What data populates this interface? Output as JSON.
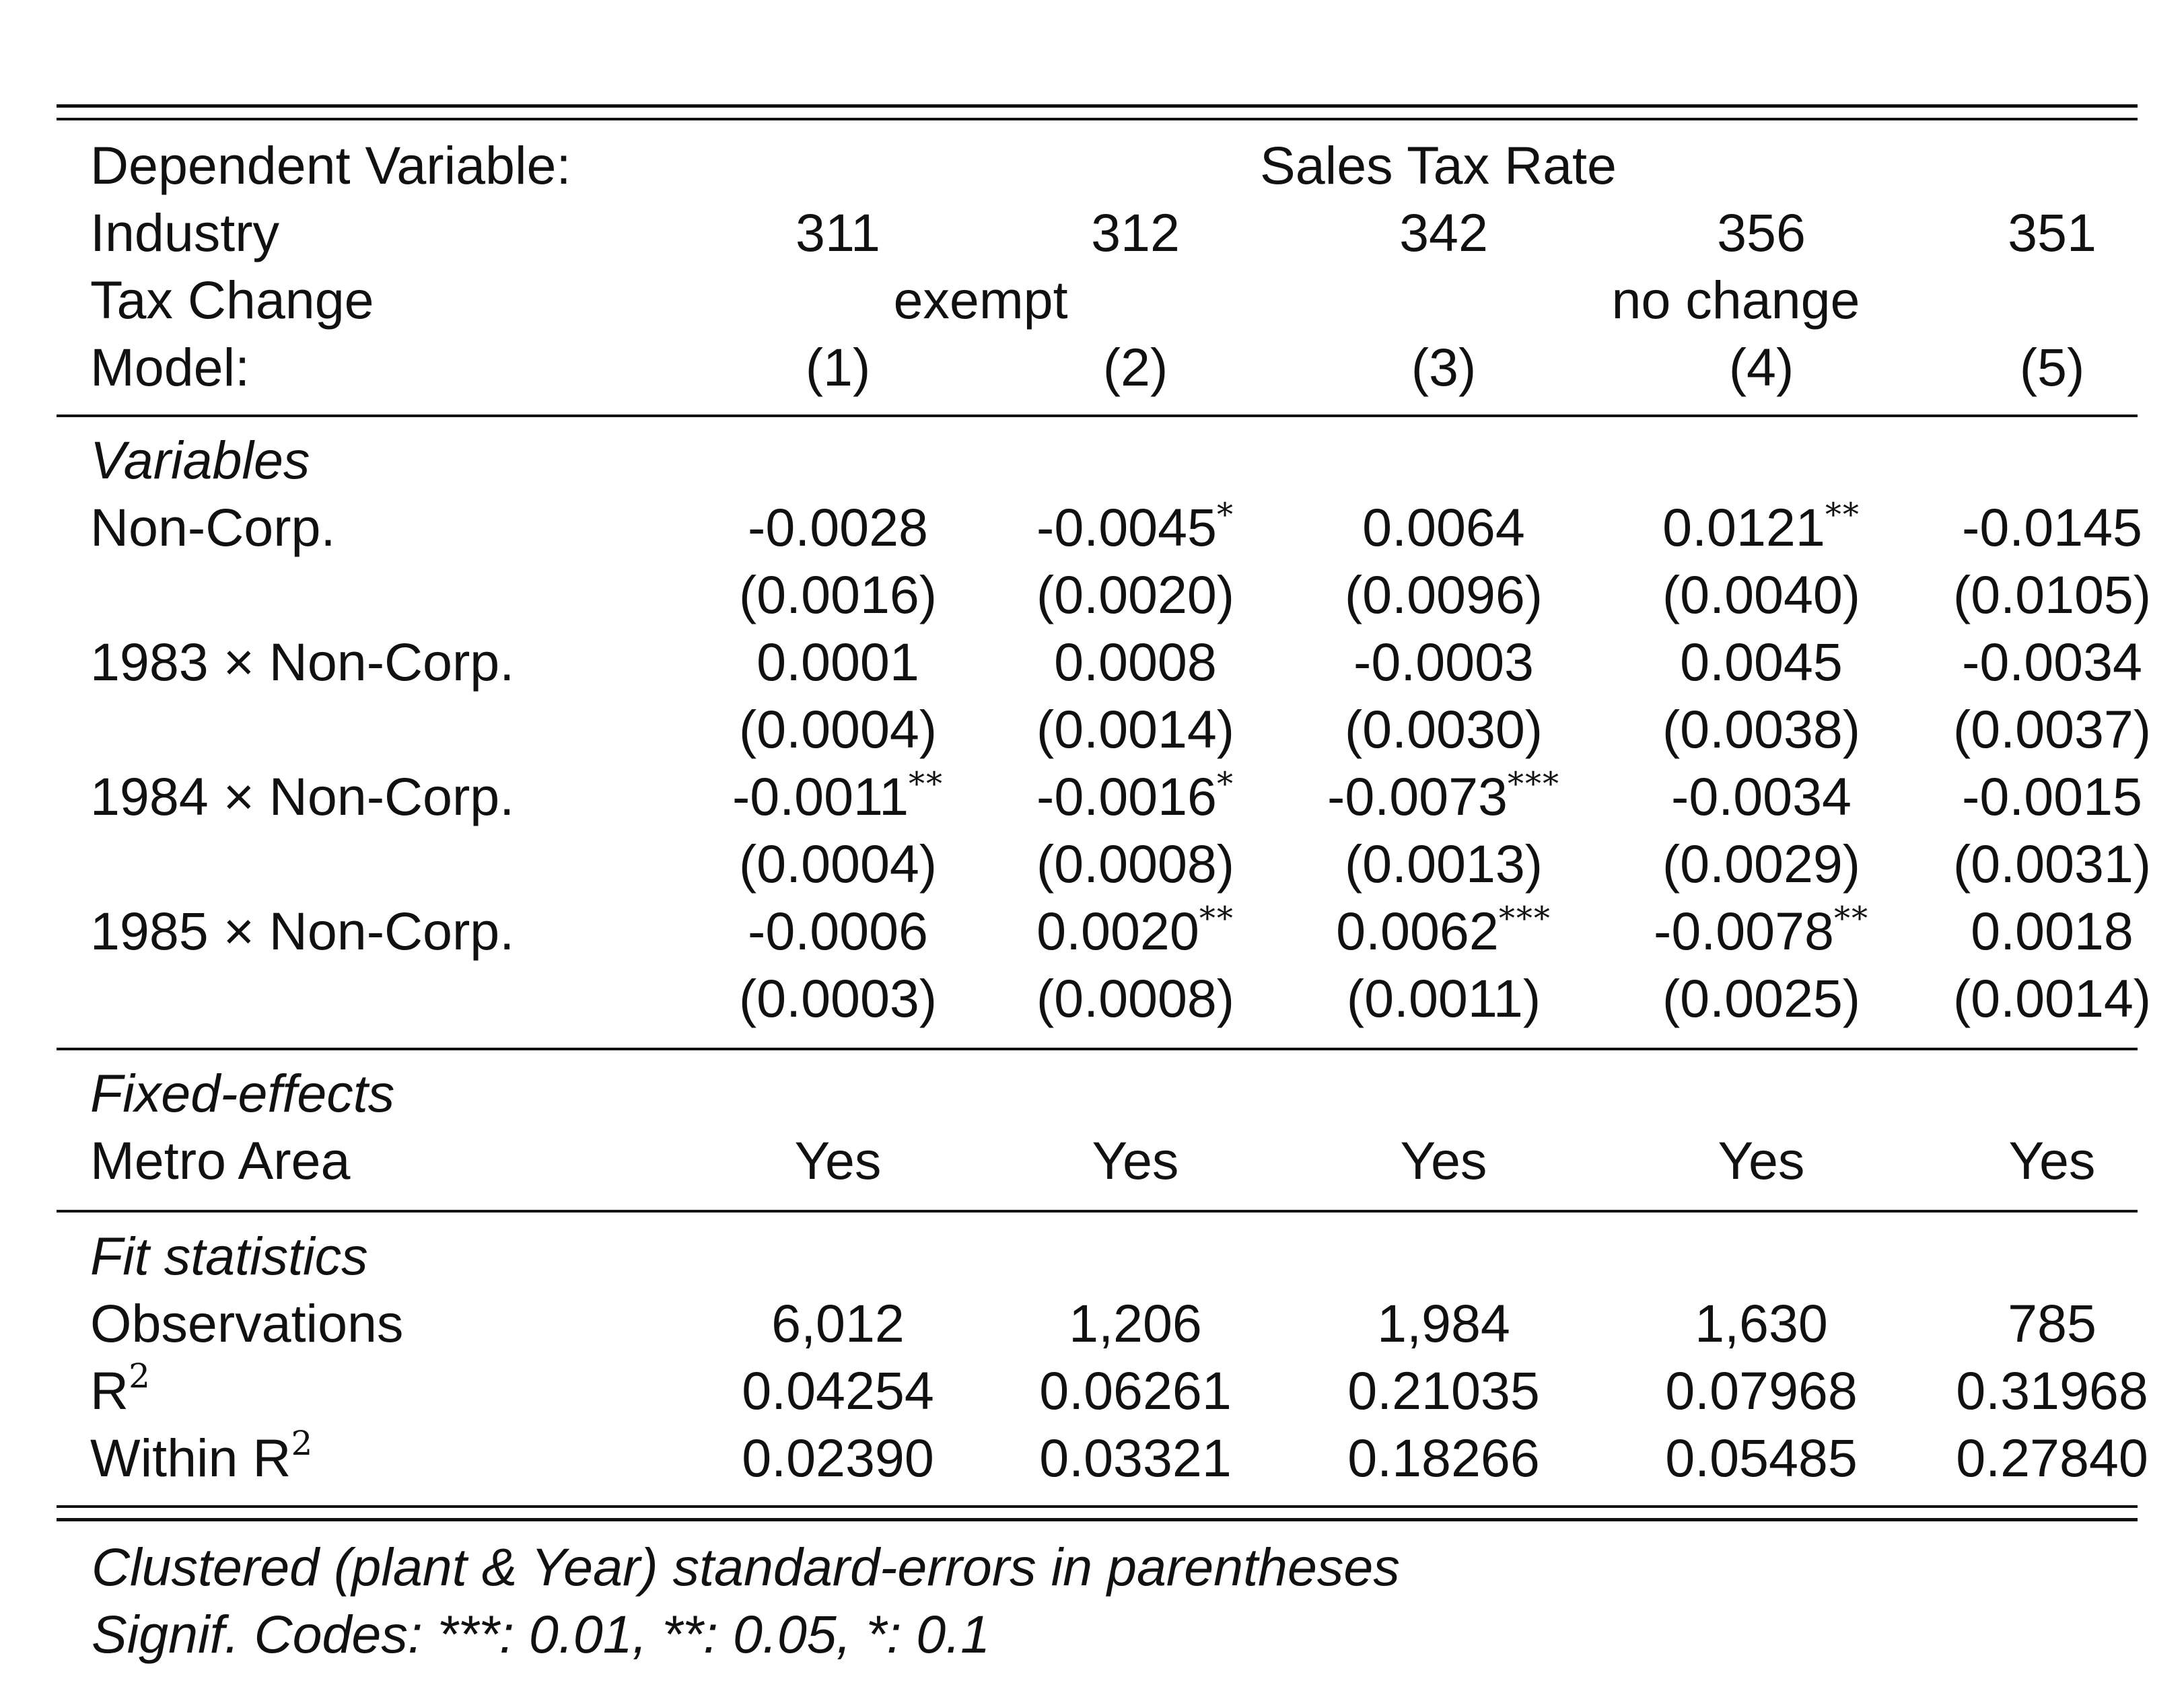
{
  "header": {
    "dep_var_label": "Dependent Variable:",
    "dep_var_value": "Sales Tax Rate",
    "industry_label": "Industry",
    "industries": [
      "311",
      "312",
      "342",
      "356",
      "351"
    ],
    "tax_change_label": "Tax Change",
    "tax_change_exempt": "exempt",
    "tax_change_nochange": "no change",
    "model_label": "Model:",
    "models": [
      "(1)",
      "(2)",
      "(3)",
      "(4)",
      "(5)"
    ]
  },
  "sections": {
    "variables": "Variables",
    "fixed_effects": "Fixed-effects",
    "fit_statistics": "Fit statistics"
  },
  "variables": [
    {
      "label": "Non-Corp.",
      "coef": [
        "-0.0028",
        "-0.0045",
        "0.0064",
        "0.0121",
        "-0.0145"
      ],
      "stars": [
        "",
        "*",
        "",
        "**",
        ""
      ],
      "se": [
        "(0.0016)",
        "(0.0020)",
        "(0.0096)",
        "(0.0040)",
        "(0.0105)"
      ]
    },
    {
      "label": "1983 × Non-Corp.",
      "coef": [
        "0.0001",
        "0.0008",
        "-0.0003",
        "0.0045",
        "-0.0034"
      ],
      "stars": [
        "",
        "",
        "",
        "",
        ""
      ],
      "se": [
        "(0.0004)",
        "(0.0014)",
        "(0.0030)",
        "(0.0038)",
        "(0.0037)"
      ]
    },
    {
      "label": "1984 × Non-Corp.",
      "coef": [
        "-0.0011",
        "-0.0016",
        "-0.0073",
        "-0.0034",
        "-0.0015"
      ],
      "stars": [
        "**",
        "*",
        "***",
        "",
        ""
      ],
      "se": [
        "(0.0004)",
        "(0.0008)",
        "(0.0013)",
        "(0.0029)",
        "(0.0031)"
      ]
    },
    {
      "label": "1985 × Non-Corp.",
      "coef": [
        "-0.0006",
        "0.0020",
        "0.0062",
        "-0.0078",
        "0.0018"
      ],
      "stars": [
        "",
        "**",
        "***",
        "**",
        ""
      ],
      "se": [
        "(0.0003)",
        "(0.0008)",
        "(0.0011)",
        "(0.0025)",
        "(0.0014)"
      ]
    }
  ],
  "fixed_effects": [
    {
      "label": "Metro Area",
      "values": [
        "Yes",
        "Yes",
        "Yes",
        "Yes",
        "Yes"
      ]
    }
  ],
  "fit": [
    {
      "label": "Observations",
      "sup": "",
      "values": [
        "6,012",
        "1,206",
        "1,984",
        "1,630",
        "785"
      ]
    },
    {
      "label": "R",
      "sup": "2",
      "values": [
        "0.04254",
        "0.06261",
        "0.21035",
        "0.07968",
        "0.31968"
      ]
    },
    {
      "label": "Within R",
      "sup": "2",
      "values": [
        "0.02390",
        "0.03321",
        "0.18266",
        "0.05485",
        "0.27840"
      ]
    }
  ],
  "notes": {
    "line1": "Clustered (plant & Year) standard-errors in parentheses",
    "line2": "Signif. Codes: ***: 0.01, **: 0.05, *: 0.1"
  }
}
